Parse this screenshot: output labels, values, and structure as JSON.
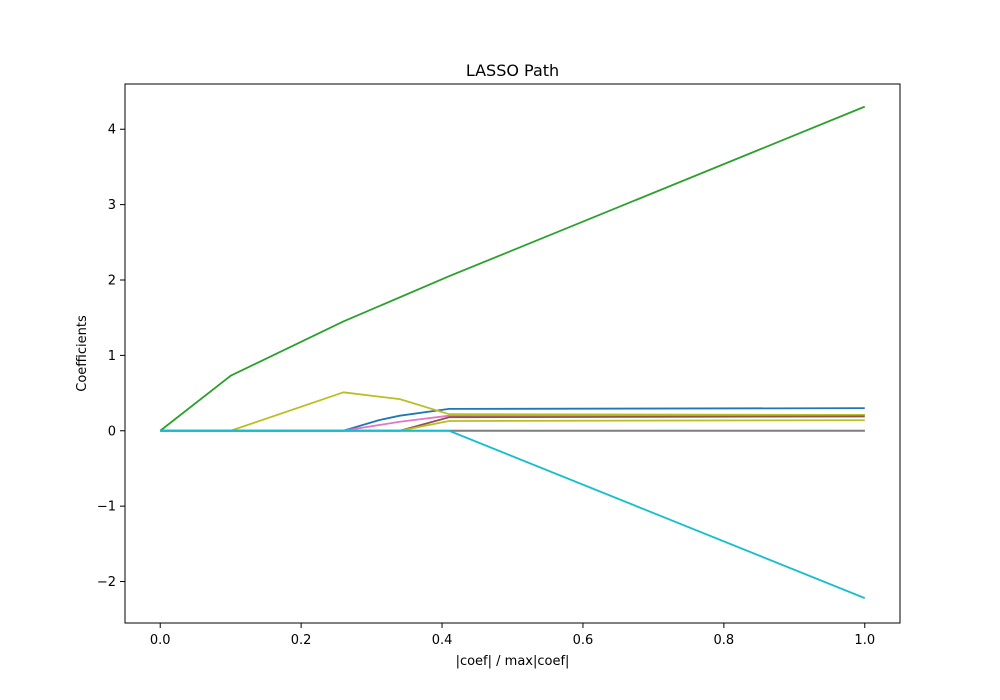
{
  "chart_data": {
    "type": "line",
    "title": "LASSO Path",
    "xlabel": "|coef| / max|coef|",
    "ylabel": "Coefficients",
    "xlim": [
      -0.05,
      1.05
    ],
    "ylim": [
      -2.55,
      4.6
    ],
    "xticks": [
      0.0,
      0.2,
      0.4,
      0.6,
      0.8,
      1.0
    ],
    "xtick_labels": [
      "0.0",
      "0.2",
      "0.4",
      "0.6",
      "0.8",
      "1.0"
    ],
    "yticks": [
      -2,
      -1,
      0,
      1,
      2,
      3,
      4
    ],
    "ytick_labels": [
      "−2",
      "−1",
      "0",
      "1",
      "2",
      "3",
      "4"
    ],
    "grid": false,
    "legend": "none",
    "series": [
      {
        "color": "#2ca02c",
        "points": [
          [
            0.0,
            0.0
          ],
          [
            0.1,
            0.73
          ],
          [
            0.26,
            1.45
          ],
          [
            0.41,
            2.05
          ],
          [
            1.0,
            4.3
          ]
        ]
      },
      {
        "color": "#1f77b4",
        "points": [
          [
            0.0,
            0.0
          ],
          [
            0.26,
            0.0
          ],
          [
            0.31,
            0.14
          ],
          [
            0.34,
            0.2
          ],
          [
            0.41,
            0.29
          ],
          [
            1.0,
            0.3
          ]
        ]
      },
      {
        "color": "#e377c2",
        "points": [
          [
            0.0,
            0.0
          ],
          [
            0.26,
            0.0
          ],
          [
            0.34,
            0.12
          ],
          [
            0.41,
            0.2
          ],
          [
            1.0,
            0.21
          ]
        ]
      },
      {
        "color": "#bcbd22",
        "points": [
          [
            0.0,
            0.0
          ],
          [
            0.1,
            0.0
          ],
          [
            0.26,
            0.51
          ],
          [
            0.34,
            0.42
          ],
          [
            0.41,
            0.22
          ],
          [
            1.0,
            0.21
          ]
        ]
      },
      {
        "color": "#8c564b",
        "points": [
          [
            0.0,
            0.0
          ],
          [
            0.34,
            0.0
          ],
          [
            0.41,
            0.18
          ],
          [
            1.0,
            0.19
          ]
        ]
      },
      {
        "color": "#bcbd22",
        "points": [
          [
            0.0,
            0.0
          ],
          [
            0.34,
            0.0
          ],
          [
            0.41,
            0.13
          ],
          [
            1.0,
            0.14
          ]
        ]
      },
      {
        "color": "#ff7f0e",
        "points": [
          [
            0.0,
            0.0
          ],
          [
            1.0,
            0.0
          ]
        ]
      },
      {
        "color": "#9467bd",
        "points": [
          [
            0.0,
            0.0
          ],
          [
            1.0,
            0.0
          ]
        ]
      },
      {
        "color": "#7f7f7f",
        "points": [
          [
            0.0,
            0.0
          ],
          [
            1.0,
            0.0
          ]
        ]
      },
      {
        "color": "#17becf",
        "points": [
          [
            0.0,
            0.0
          ],
          [
            0.41,
            0.0
          ],
          [
            1.0,
            -2.22
          ]
        ]
      }
    ]
  }
}
